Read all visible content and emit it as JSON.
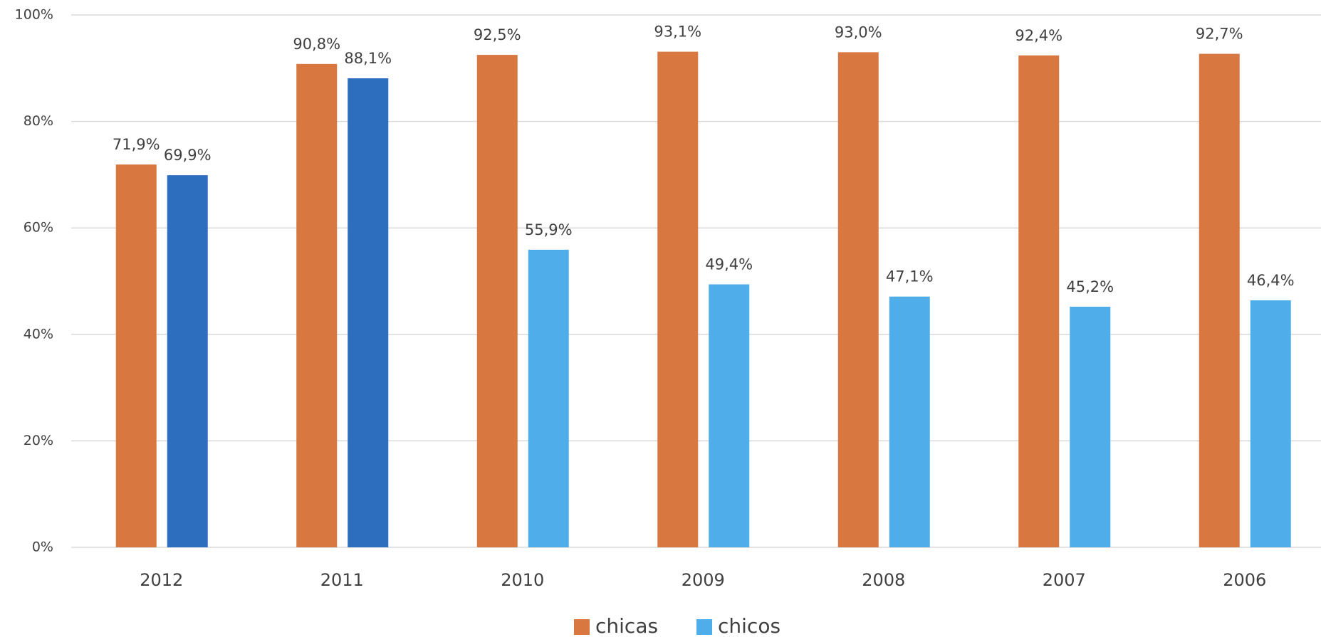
{
  "chart_data": {
    "type": "bar",
    "categories": [
      "2012",
      "2011",
      "2010",
      "2009",
      "2008",
      "2007",
      "2006"
    ],
    "series": [
      {
        "name": "chicas",
        "color": "#d8773f",
        "values": [
          71.9,
          90.8,
          92.5,
          93.1,
          93.0,
          92.4,
          92.7
        ],
        "value_labels": [
          "71,9%",
          "90,8%",
          "92,5%",
          "93,1%",
          "93,0%",
          "92,4%",
          "92,7%"
        ]
      },
      {
        "name": "chicos",
        "color": "#4faee9",
        "colors": [
          "#2e6ebe",
          "#2e6ebe",
          "#4faee9",
          "#4faee9",
          "#4faee9",
          "#4faee9",
          "#4faee9"
        ],
        "values": [
          69.9,
          88.1,
          55.9,
          49.4,
          47.1,
          45.2,
          46.4
        ],
        "value_labels": [
          "69,9%",
          "88,1%",
          "55,9%",
          "49,4%",
          "47,1%",
          "45,2%",
          "46,4%"
        ]
      }
    ],
    "ylim": [
      0,
      100
    ],
    "yticks": [
      {
        "value": 0,
        "label": "0%"
      },
      {
        "value": 20,
        "label": "20%"
      },
      {
        "value": 40,
        "label": "40%"
      },
      {
        "value": 60,
        "label": "60%"
      },
      {
        "value": 80,
        "label": "80%"
      },
      {
        "value": 100,
        "label": "100%"
      }
    ],
    "grid": true,
    "legend": "bottom"
  }
}
